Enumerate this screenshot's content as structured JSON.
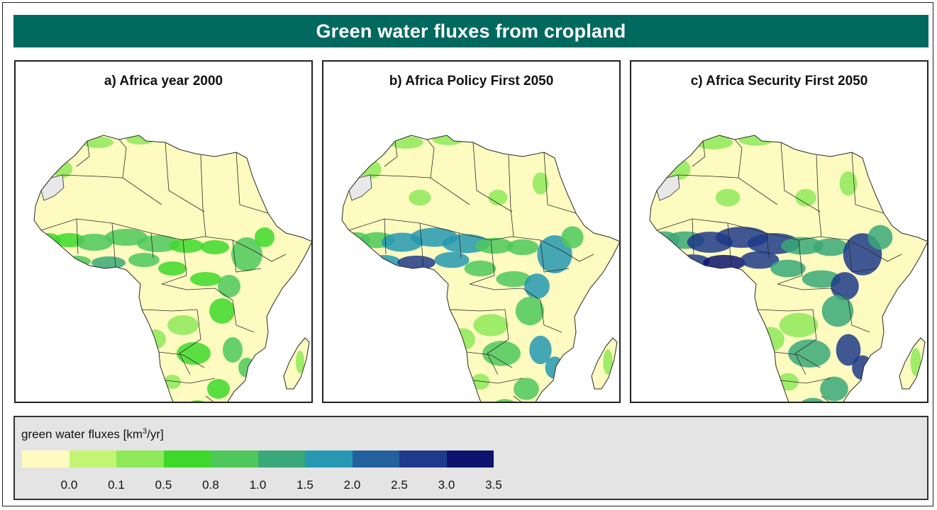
{
  "title": "Green water fluxes from cropland",
  "panels": [
    {
      "label": "a)  Africa year 2000",
      "intensity": 0
    },
    {
      "label": "b)  Africa Policy First 2050",
      "intensity": 1
    },
    {
      "label": "c)  Africa Security First 2050",
      "intensity": 2
    }
  ],
  "legend": {
    "title_prefix": "green water fluxes [km",
    "title_sup": "3",
    "title_suffix": "/yr]",
    "colors": [
      "#fdfbc0",
      "#c3f574",
      "#8ee85a",
      "#3ed82c",
      "#4ec85a",
      "#3aa878",
      "#2698b2",
      "#24609e",
      "#1e3a8a",
      "#0c1470"
    ],
    "ticks": [
      "0.0",
      "0.1",
      "0.5",
      "0.8",
      "1.0",
      "1.5",
      "2.0",
      "2.5",
      "3.0",
      "3.5"
    ]
  },
  "map_colors": {
    "land": "#fdfbc0",
    "border": "#2a2a2a",
    "nodata": "#e8e8e8"
  }
}
